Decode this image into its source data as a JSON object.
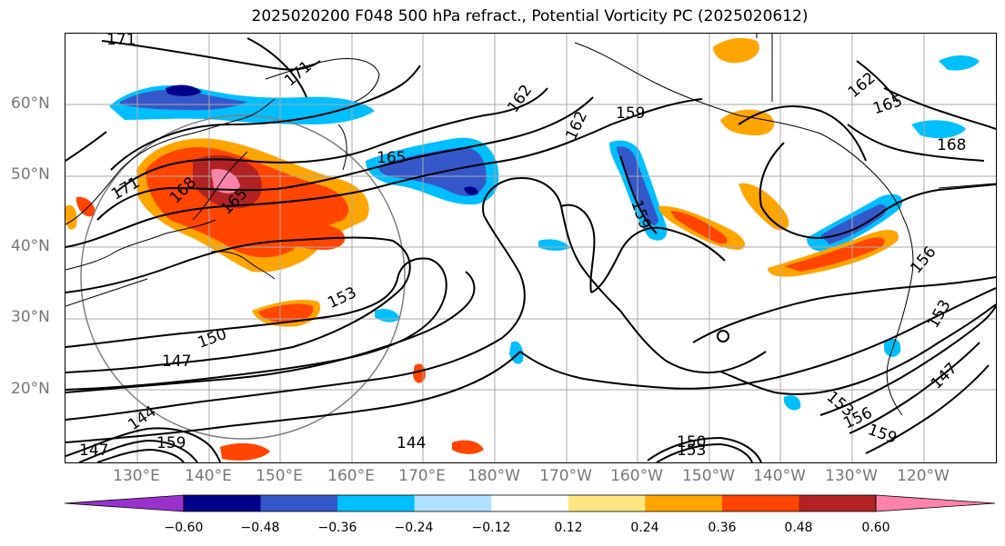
{
  "title": "2025020200 F048 500 hPa refract., Potential Vorticity PC (2025020612)",
  "lat_labels": [
    "60°N",
    "50°N",
    "40°N",
    "30°N",
    "20°N"
  ],
  "lon_labels": [
    "130°E",
    "140°E",
    "150°E",
    "160°E",
    "170°E",
    "180°W",
    "170°W",
    "160°W",
    "150°W",
    "140°W",
    "130°W",
    "120°W"
  ],
  "contour_labels": [
    "171",
    "171",
    "171",
    "168",
    "165",
    "165",
    "162",
    "162",
    "162",
    "159",
    "159",
    "165",
    "168",
    "153",
    "150",
    "147",
    "144",
    "147",
    "159",
    "144",
    "150",
    "153",
    "153",
    "156",
    "159",
    "156",
    "153",
    "147"
  ],
  "colorbar": {
    "ticks": [
      "−0.60",
      "−0.48",
      "−0.36",
      "−0.24",
      "−0.12",
      "0.12",
      "0.24",
      "0.36",
      "0.48",
      "0.60"
    ],
    "colors": [
      "#9932cc",
      "#00008b",
      "#3458c9",
      "#00bfff",
      "#b0e2ff",
      "#ffffff",
      "#ffe680",
      "#ffa500",
      "#ff4500",
      "#b22222",
      "#ff82ab"
    ]
  }
}
